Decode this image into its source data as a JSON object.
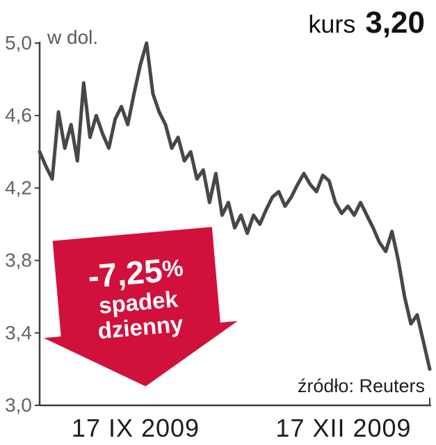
{
  "header": {
    "kurs_label": "kurs",
    "kurs_value": "3,20"
  },
  "chart": {
    "unit_label": "w dol.",
    "source": "źródło: Reuters"
  },
  "annotation": {
    "percent_value": "-7,25",
    "percent_sign": "%",
    "caption_line1": "spadek",
    "caption_line2": "dzienny"
  },
  "colors": {
    "line": "#474747",
    "axis": "#3d3d3d",
    "tick_label": "#636363",
    "arrow_red": "#d2103c",
    "text_dark": "#121212"
  },
  "chart_data": {
    "type": "line",
    "title": "kurs 3,20",
    "unit": "w dol.",
    "source": "źródło: Reuters",
    "x_tick_labels": [
      "17 IX 2009",
      "17 XII 2009"
    ],
    "ylim": [
      3.0,
      5.0
    ],
    "yticks": [
      3.0,
      3.4,
      3.8,
      4.2,
      4.6,
      5.0
    ],
    "ytick_labels": [
      "3,0",
      "3,4",
      "3,8",
      "4,2",
      "4,6",
      "5,0"
    ],
    "values": [
      4.4,
      4.32,
      4.25,
      4.62,
      4.42,
      4.55,
      4.35,
      4.78,
      4.48,
      4.6,
      4.5,
      4.42,
      4.58,
      4.65,
      4.55,
      4.72,
      4.88,
      5.0,
      4.72,
      4.62,
      4.55,
      4.42,
      4.48,
      4.35,
      4.4,
      4.25,
      4.3,
      4.12,
      4.28,
      4.05,
      4.12,
      3.98,
      4.05,
      3.95,
      4.05,
      4.0,
      4.08,
      4.15,
      4.18,
      4.1,
      4.15,
      4.22,
      4.28,
      4.22,
      4.18,
      4.27,
      4.24,
      4.12,
      4.06,
      4.1,
      4.05,
      4.12,
      4.05,
      3.98,
      3.9,
      3.85,
      3.96,
      3.8,
      3.6,
      3.45,
      3.5,
      3.35,
      3.2
    ],
    "last_value": 3.2,
    "daily_change_percent": -7.25,
    "annotation": "-7,25% spadek dzienny",
    "grid": false,
    "legend": false
  }
}
